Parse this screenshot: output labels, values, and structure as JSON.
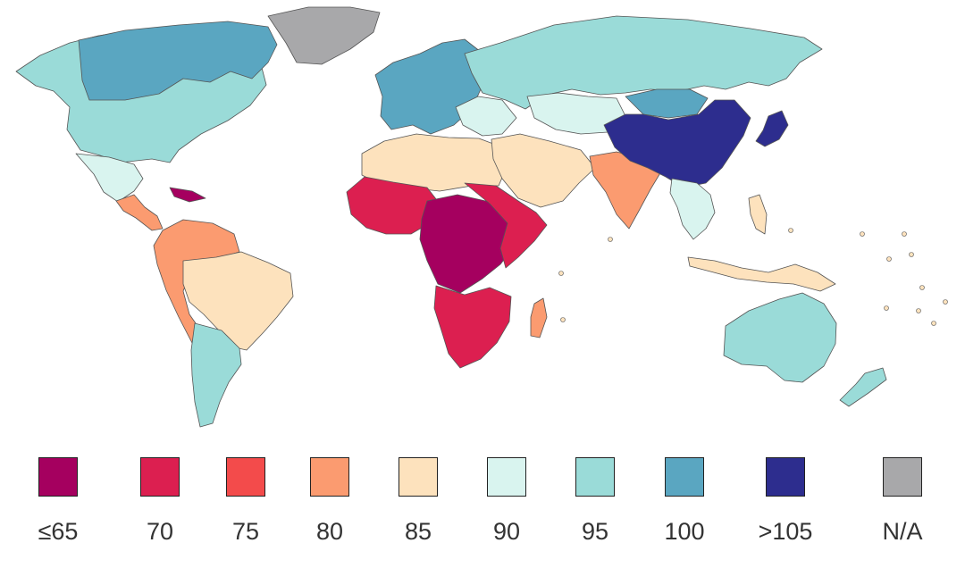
{
  "legend": {
    "items": [
      {
        "label": "≤65",
        "color": "#a5005f"
      },
      {
        "label": "70",
        "color": "#dc1f50"
      },
      {
        "label": "75",
        "color": "#f34b4b"
      },
      {
        "label": "80",
        "color": "#fb9b70"
      },
      {
        "label": "85",
        "color": "#fde2bd"
      },
      {
        "label": "90",
        "color": "#d9f4ef"
      },
      {
        "label": "95",
        "color": "#9adbd8"
      },
      {
        "label": "100",
        "color": "#5aa6c1"
      },
      {
        "label": ">105",
        "color": "#2d2d8e"
      },
      {
        "label": "N/A",
        "color": "#a8a8aa"
      }
    ]
  },
  "regions": [
    {
      "name": "north-america",
      "category": "95"
    },
    {
      "name": "canada-north",
      "category": "100"
    },
    {
      "name": "greenland",
      "category": "N/A"
    },
    {
      "name": "mexico",
      "category": "90"
    },
    {
      "name": "central-america",
      "category": "80"
    },
    {
      "name": "caribbean",
      "category": "≤65"
    },
    {
      "name": "south-america-north",
      "category": "80"
    },
    {
      "name": "brazil",
      "category": "85"
    },
    {
      "name": "south-america-south",
      "category": "95"
    },
    {
      "name": "europe-west",
      "category": "100"
    },
    {
      "name": "europe-east",
      "category": "90"
    },
    {
      "name": "russia",
      "category": "95"
    },
    {
      "name": "north-africa",
      "category": "85"
    },
    {
      "name": "west-africa",
      "category": "70"
    },
    {
      "name": "central-africa",
      "category": "≤65"
    },
    {
      "name": "east-africa",
      "category": "70"
    },
    {
      "name": "southern-africa",
      "category": "70"
    },
    {
      "name": "madagascar",
      "category": "80"
    },
    {
      "name": "middle-east",
      "category": "85"
    },
    {
      "name": "central-asia",
      "category": "90"
    },
    {
      "name": "india",
      "category": "80"
    },
    {
      "name": "mongolia",
      "category": "100"
    },
    {
      "name": "china",
      "category": ">105"
    },
    {
      "name": "japan",
      "category": ">105"
    },
    {
      "name": "southeast-asia",
      "category": "90"
    },
    {
      "name": "indonesia",
      "category": "85"
    },
    {
      "name": "australia",
      "category": "95"
    },
    {
      "name": "new-zealand",
      "category": "95"
    }
  ]
}
